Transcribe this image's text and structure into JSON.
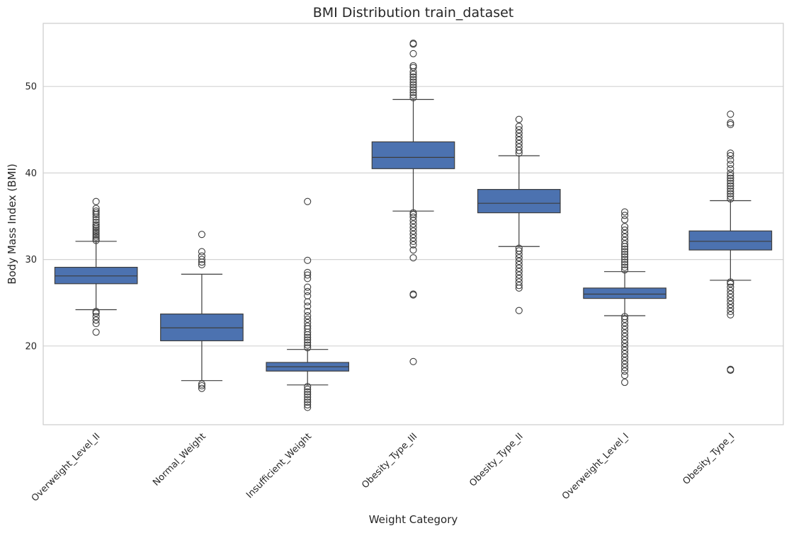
{
  "chart_data": {
    "type": "box",
    "title": "BMI Distribution train_dataset",
    "xlabel": "Weight Category",
    "ylabel": "Body Mass Index (BMI)",
    "ylim": [
      10.9,
      57.3
    ],
    "yticks": [
      20,
      30,
      40,
      50
    ],
    "grid": "horizontal",
    "box_color": "#4c72b0",
    "categories": [
      "Overweight_Level_II",
      "Normal_Weight",
      "Insufficient_Weight",
      "Obesity_Type_III",
      "Obesity_Type_II",
      "Overweight_Level_I",
      "Obesity_Type_I"
    ],
    "boxes": [
      {
        "category": "Overweight_Level_II",
        "whisker_low": 24.2,
        "q1": 27.2,
        "median": 28.1,
        "q3": 29.1,
        "whisker_high": 32.1,
        "outliers": [
          21.6,
          22.6,
          23.0,
          23.4,
          23.8,
          24.0,
          32.2,
          32.4,
          32.6,
          32.8,
          33.0,
          33.2,
          33.4,
          33.6,
          33.8,
          34.0,
          34.3,
          34.6,
          34.9,
          35.2,
          35.4,
          35.6,
          35.9,
          36.7
        ]
      },
      {
        "category": "Normal_Weight",
        "whisker_low": 16.0,
        "q1": 20.6,
        "median": 22.1,
        "q3": 23.7,
        "whisker_high": 28.3,
        "outliers": [
          15.1,
          15.4,
          15.6,
          29.4,
          29.7,
          30.0,
          30.4,
          30.9,
          32.9
        ]
      },
      {
        "category": "Insufficient_Weight",
        "whisker_low": 15.5,
        "q1": 17.1,
        "median": 17.6,
        "q3": 18.1,
        "whisker_high": 19.6,
        "outliers": [
          12.9,
          13.2,
          13.5,
          13.8,
          14.1,
          14.4,
          14.7,
          15.0,
          15.3,
          19.8,
          20.1,
          20.4,
          20.7,
          21.0,
          21.3,
          21.6,
          22.0,
          22.3,
          22.7,
          23.1,
          23.5,
          24.0,
          24.6,
          25.1,
          25.8,
          26.3,
          26.8,
          27.8,
          28.2,
          28.5,
          29.9,
          36.7
        ]
      },
      {
        "category": "Obesity_Type_III",
        "whisker_low": 35.6,
        "q1": 40.5,
        "median": 41.8,
        "q3": 43.6,
        "whisker_high": 48.5,
        "outliers": [
          18.2,
          25.9,
          26.0,
          30.2,
          31.1,
          31.7,
          32.1,
          32.5,
          32.9,
          33.3,
          33.7,
          34.1,
          34.5,
          34.9,
          35.2,
          35.4,
          48.7,
          49.0,
          49.3,
          49.6,
          49.9,
          50.2,
          50.5,
          50.8,
          51.1,
          51.4,
          51.7,
          52.2,
          52.4,
          53.8,
          54.9,
          55.0
        ]
      },
      {
        "category": "Obesity_Type_II",
        "whisker_low": 31.5,
        "q1": 35.4,
        "median": 36.5,
        "q3": 38.1,
        "whisker_high": 42.0,
        "outliers": [
          24.1,
          26.7,
          27.0,
          27.4,
          27.8,
          28.2,
          28.6,
          29.0,
          29.4,
          29.8,
          30.2,
          30.6,
          31.0,
          31.3,
          42.3,
          42.6,
          43.0,
          43.4,
          43.8,
          44.2,
          44.6,
          45.0,
          45.4,
          46.2
        ]
      },
      {
        "category": "Overweight_Level_I",
        "whisker_low": 23.5,
        "q1": 25.5,
        "median": 26.0,
        "q3": 26.7,
        "whisker_high": 28.6,
        "outliers": [
          15.8,
          16.6,
          17.1,
          17.5,
          17.9,
          18.3,
          18.7,
          19.1,
          19.5,
          19.9,
          20.3,
          20.7,
          21.1,
          21.5,
          21.9,
          22.3,
          22.7,
          23.1,
          23.4,
          28.8,
          29.1,
          29.4,
          29.7,
          30.0,
          30.3,
          30.6,
          30.9,
          31.2,
          31.5,
          31.8,
          32.2,
          32.6,
          33.0,
          33.4,
          33.8,
          34.6,
          35.1,
          35.5
        ]
      },
      {
        "category": "Obesity_Type_I",
        "whisker_low": 27.6,
        "q1": 31.1,
        "median": 32.1,
        "q3": 33.3,
        "whisker_high": 36.8,
        "outliers": [
          17.2,
          17.3,
          23.6,
          24.0,
          24.4,
          24.8,
          25.2,
          25.6,
          26.0,
          26.4,
          26.8,
          27.2,
          27.4,
          37.0,
          37.3,
          37.6,
          37.9,
          38.2,
          38.5,
          38.8,
          39.1,
          39.4,
          39.7,
          40.0,
          40.5,
          41.0,
          41.5,
          42.0,
          42.3,
          45.6,
          45.8,
          46.8
        ]
      }
    ]
  }
}
